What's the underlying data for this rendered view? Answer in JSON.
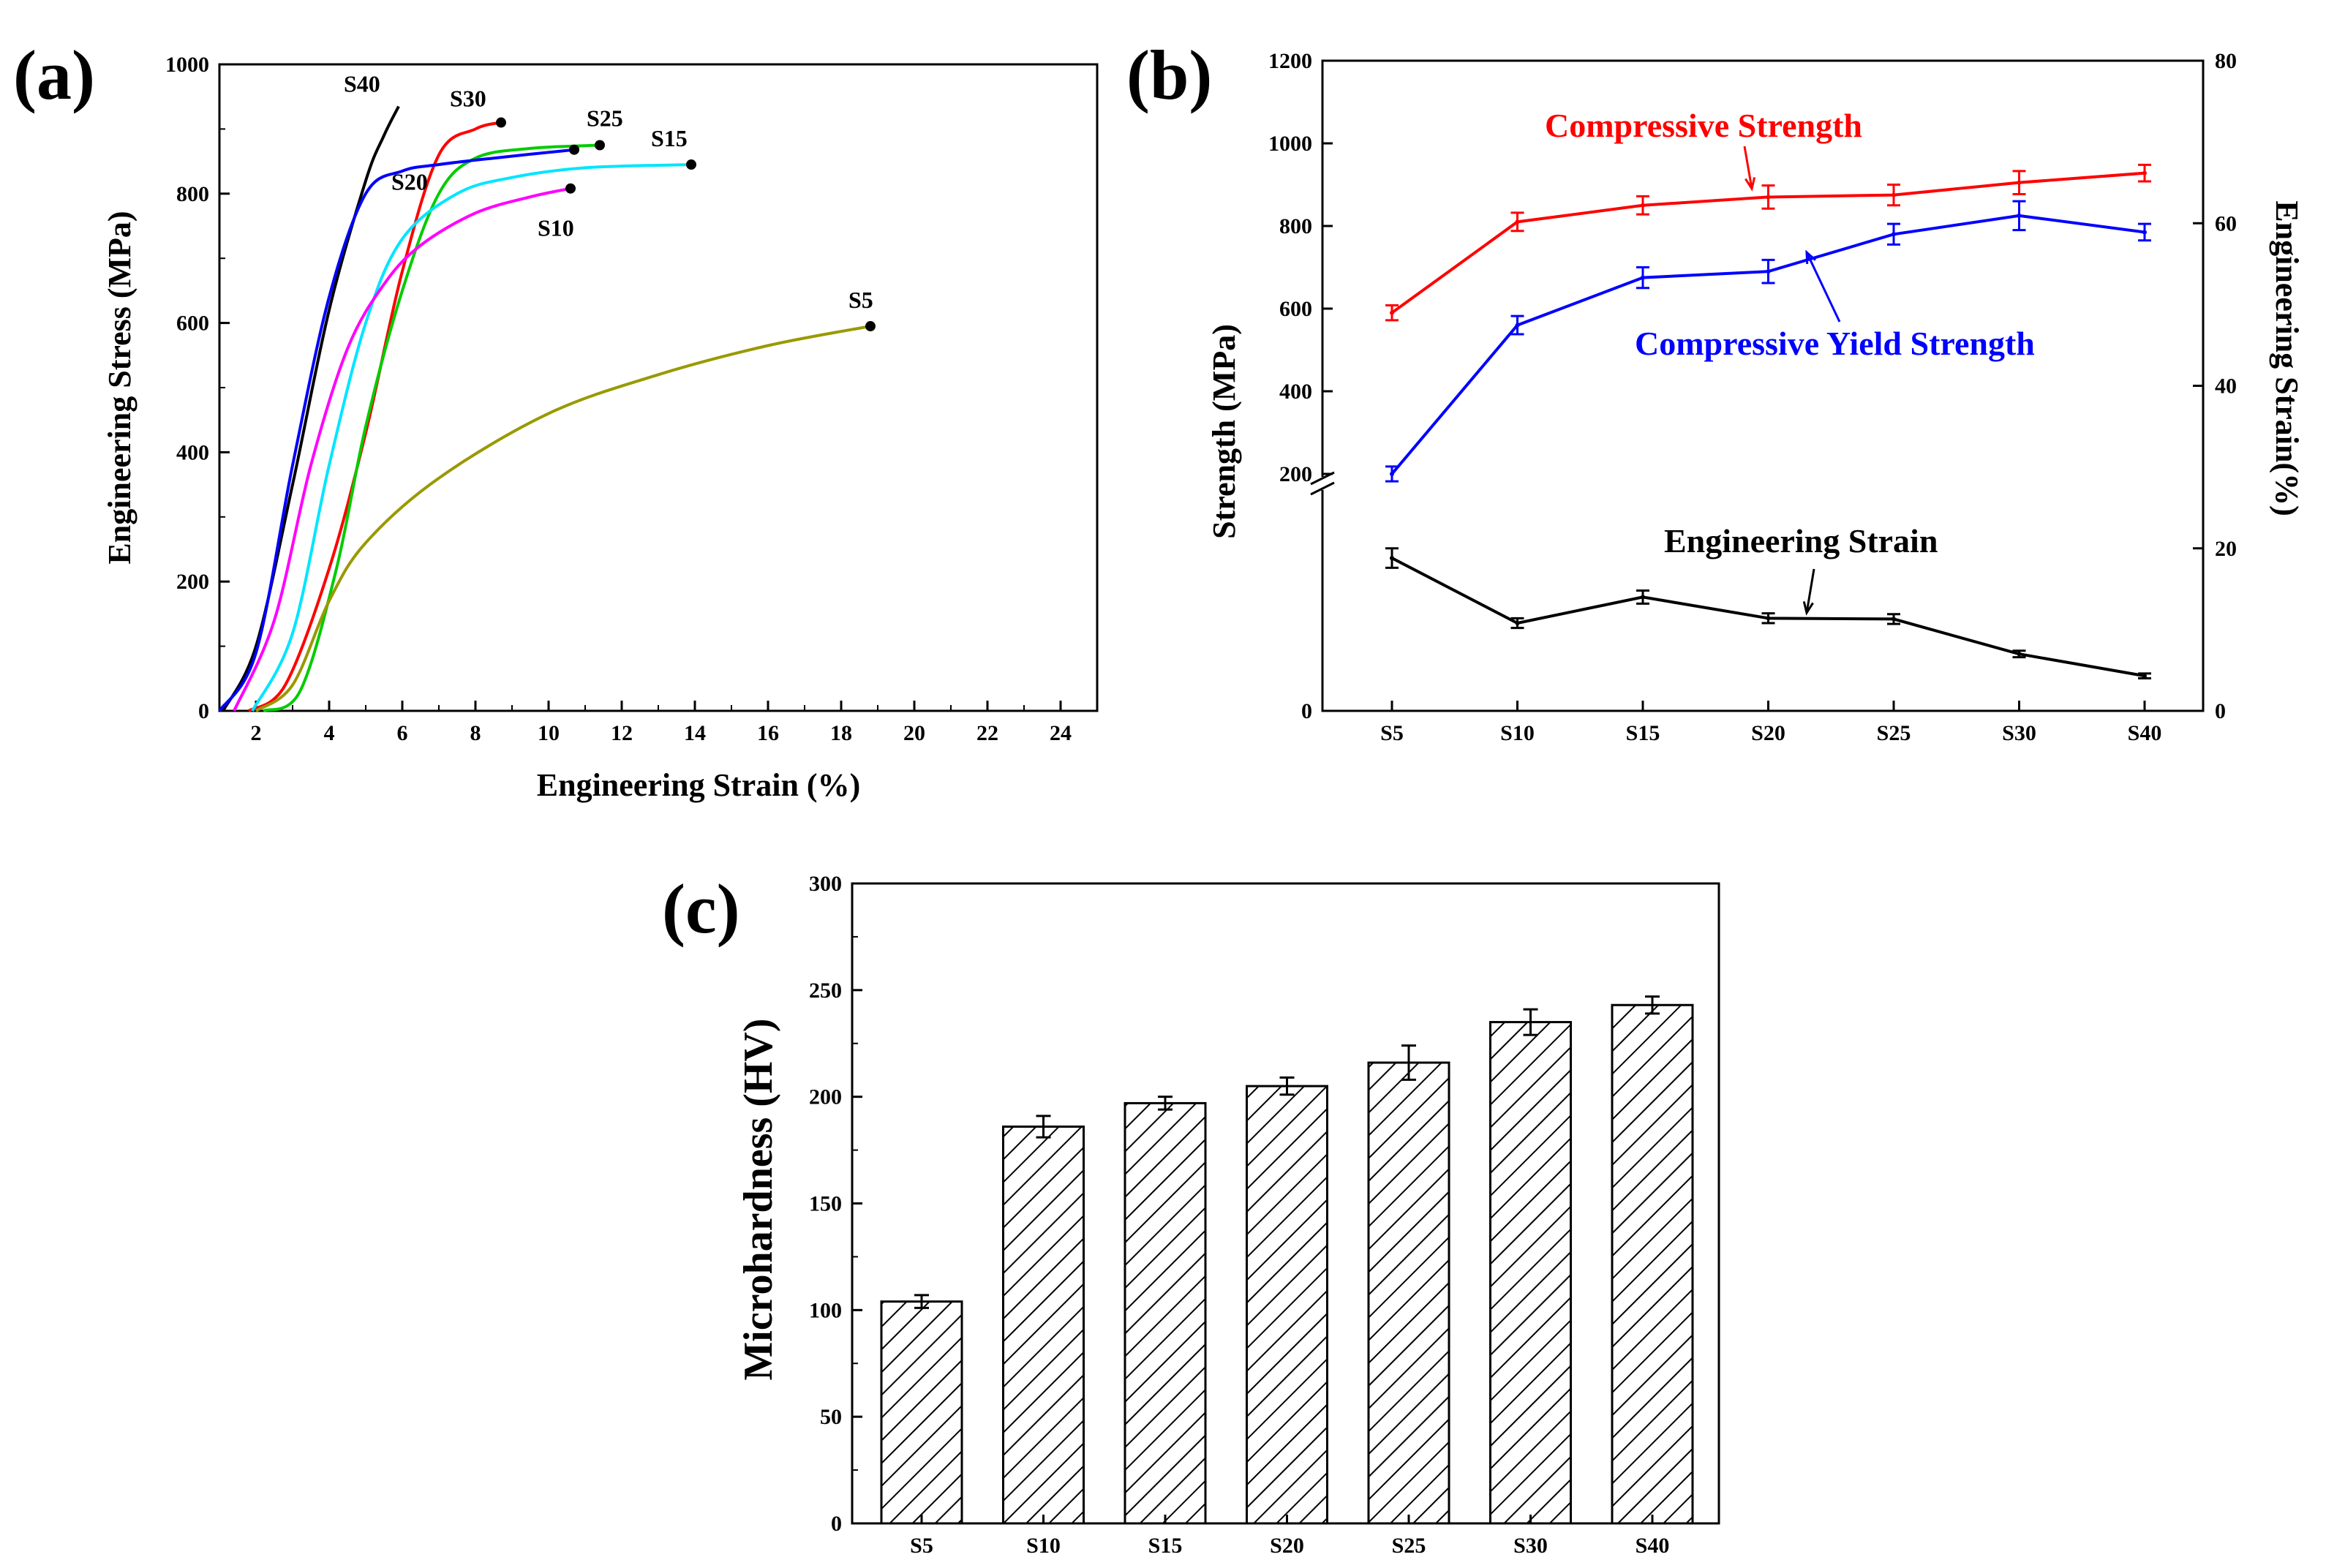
{
  "chart_data": [
    {
      "panel_label": "(a)",
      "type": "line",
      "xlabel": "Engineering Strain (%)",
      "ylabel": "Engineering Stress (MPa)",
      "xlim": [
        1,
        25
      ],
      "ylim": [
        0,
        1000
      ],
      "xticks": [
        2,
        4,
        6,
        8,
        10,
        12,
        14,
        16,
        18,
        20,
        22,
        24
      ],
      "yticks": [
        0,
        200,
        400,
        600,
        800,
        1000
      ],
      "series": [
        {
          "name": "S40",
          "color": "#000000",
          "x": [
            1.1,
            2.0,
            3.0,
            4.0,
            5.0,
            5.5,
            5.9
          ],
          "y": [
            0,
            100,
            350,
            620,
            820,
            890,
            935
          ],
          "end": [
            5.9,
            935
          ]
        },
        {
          "name": "S30",
          "color": "#ff0000",
          "x": [
            1.8,
            2.8,
            4.0,
            5.0,
            6.0,
            7.0,
            8.0,
            8.7
          ],
          "y": [
            0,
            40,
            220,
            430,
            680,
            860,
            900,
            910
          ],
          "end": [
            8.7,
            910
          ]
        },
        {
          "name": "S25",
          "color": "#00cc00",
          "x": [
            2.2,
            3.2,
            4.2,
            5.0,
            6.0,
            7.0,
            8.0,
            9.5,
            11.4
          ],
          "y": [
            0,
            30,
            220,
            440,
            650,
            800,
            855,
            870,
            875
          ],
          "end": [
            11.4,
            875
          ]
        },
        {
          "name": "S20",
          "color": "#0000ff",
          "x": [
            1.0,
            2.0,
            3.0,
            4.0,
            5.0,
            6.0,
            7.0,
            8.5,
            10.7
          ],
          "y": [
            0,
            90,
            380,
            640,
            800,
            835,
            845,
            855,
            868
          ],
          "end": [
            10.7,
            868
          ]
        },
        {
          "name": "S15",
          "color": "#00e5ff",
          "x": [
            1.9,
            3.0,
            4.0,
            5.0,
            6.0,
            7.5,
            9.0,
            11.0,
            13.9
          ],
          "y": [
            0,
            120,
            380,
            600,
            730,
            800,
            825,
            840,
            845
          ],
          "end": [
            13.9,
            845
          ]
        },
        {
          "name": "S10",
          "color": "#ff00ff",
          "x": [
            1.4,
            2.5,
            3.5,
            4.5,
            5.5,
            6.5,
            8.0,
            9.5,
            10.6
          ],
          "y": [
            0,
            140,
            380,
            560,
            660,
            720,
            770,
            795,
            808
          ],
          "end": [
            10.6,
            808
          ]
        },
        {
          "name": "S5",
          "color": "#999900",
          "x": [
            2.0,
            3.0,
            4.0,
            5.0,
            7.0,
            10.0,
            13.0,
            16.0,
            18.8
          ],
          "y": [
            0,
            40,
            170,
            260,
            360,
            460,
            520,
            565,
            595
          ],
          "end": [
            18.8,
            595
          ]
        }
      ]
    },
    {
      "panel_label": "(b)",
      "type": "line",
      "categories": [
        "S5",
        "S10",
        "S15",
        "S20",
        "S25",
        "S30",
        "S40"
      ],
      "ylabel_left": "Strength (MPa)",
      "ylabel_right": "Engineering Strain(%)",
      "yticks_left": [
        200,
        400,
        600,
        800,
        1000,
        1200
      ],
      "ylim_left": [
        200,
        1200
      ],
      "yticks_right": [
        0,
        20,
        40,
        60,
        80
      ],
      "ylim_right": [
        0,
        80
      ],
      "series": [
        {
          "name": "Compressive Strength",
          "color": "#ff0000",
          "axis": "left",
          "values": [
            590,
            810,
            850,
            870,
            875,
            905,
            928
          ],
          "errors": [
            18,
            22,
            22,
            28,
            25,
            28,
            20
          ]
        },
        {
          "name": "Compressive Yield Strength",
          "color": "#0000ff",
          "axis": "left",
          "values": [
            200,
            560,
            675,
            690,
            780,
            825,
            785
          ],
          "errors": [
            18,
            22,
            25,
            28,
            25,
            35,
            20
          ]
        },
        {
          "name": "Engineering Strain",
          "color": "#000000",
          "axis": "right",
          "values": [
            18.8,
            10.8,
            14.0,
            11.4,
            11.3,
            7.0,
            4.3
          ],
          "errors": [
            1.2,
            0.6,
            0.8,
            0.6,
            0.6,
            0.4,
            0.3
          ]
        }
      ]
    },
    {
      "panel_label": "(c)",
      "type": "bar",
      "categories": [
        "S5",
        "S10",
        "S15",
        "S20",
        "S25",
        "S30",
        "S40"
      ],
      "values": [
        104,
        186,
        197,
        205,
        216,
        235,
        243
      ],
      "errors": [
        3,
        5,
        3,
        4,
        8,
        6,
        4
      ],
      "ylabel": "Microhardness (HV)",
      "ylim": [
        0,
        300
      ],
      "yticks": [
        0,
        50,
        100,
        150,
        200,
        250,
        300
      ]
    }
  ]
}
